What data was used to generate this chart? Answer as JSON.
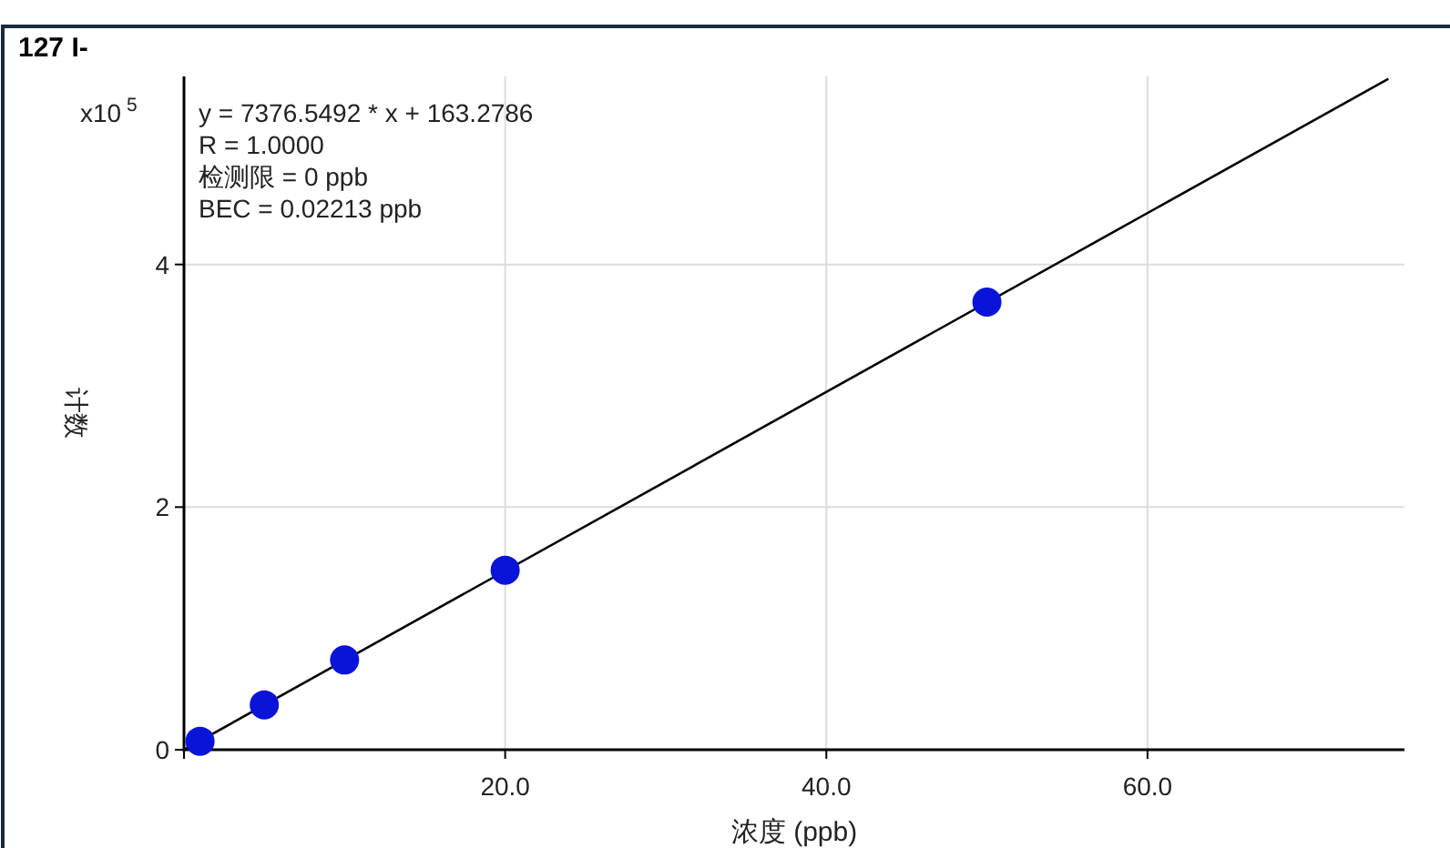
{
  "chart_data": {
    "type": "scatter",
    "title": "127 I-",
    "xlabel": "浓度 (ppb)",
    "ylabel": "计数",
    "annotations": [
      "x10$^{5}$",
      "y = 7376.5492 * x  + 163.2786",
      "R =  1.0000",
      "检测限 = 0 ppb",
      "BEC = 0.02213 ppb"
    ],
    "xlim": [
      0,
      76
    ],
    "ylim": [
      0,
      5.55
    ],
    "xticks": [
      {
        "value": 0,
        "label": null
      },
      {
        "value": 20,
        "label": "20.0"
      },
      {
        "value": 40,
        "label": "40.0"
      },
      {
        "value": 60,
        "label": "60.0"
      }
    ],
    "yticks": [
      0,
      2,
      4
    ],
    "grid": true,
    "series": [
      {
        "type": "line",
        "color": "#000000",
        "x": [
          0,
          75
        ],
        "values": [
          0,
          5.53
        ],
        "marker": "none",
        "line_style": "solid"
      },
      {
        "type": "scatter",
        "color": "#0a14d8",
        "x": [
          1,
          5,
          10,
          20,
          50
        ],
        "values": [
          0.07,
          0.37,
          0.74,
          1.48,
          3.69
        ],
        "marker": "circle"
      }
    ]
  }
}
